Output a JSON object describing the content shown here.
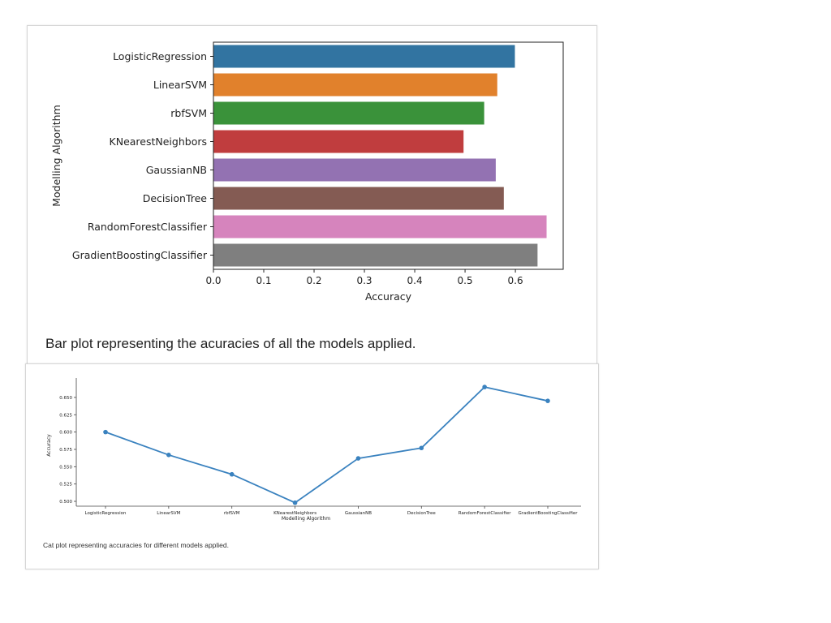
{
  "chart_data": [
    {
      "type": "bar",
      "orientation": "horizontal",
      "categories": [
        "LogisticRegression",
        "LinearSVM",
        "rbfSVM",
        "KNearestNeighbors",
        "GaussianNB",
        "DecisionTree",
        "RandomForestClassifier",
        "GradientBoostingClassifier"
      ],
      "values": [
        0.599,
        0.564,
        0.538,
        0.497,
        0.561,
        0.577,
        0.662,
        0.644
      ],
      "colors": [
        "#3274a1",
        "#e1812c",
        "#3a923a",
        "#c03d3e",
        "#9372b2",
        "#845b53",
        "#d684bd",
        "#7f7f7f"
      ],
      "xlabel": "Accuracy",
      "ylabel": "Modelling Algorithm",
      "xlim": [
        0,
        0.695
      ],
      "xticks": [
        "0.0",
        "0.1",
        "0.2",
        "0.3",
        "0.4",
        "0.5",
        "0.6"
      ],
      "caption": "Bar plot representing the acuracies of all the models applied."
    },
    {
      "type": "line",
      "categories": [
        "LogisticRegression",
        "LinearSVM",
        "rbfSVM",
        "KNearestNeighbors",
        "GaussianNB",
        "DecisionTree",
        "RandomForestClassifier",
        "GradientBoostingClassifier"
      ],
      "values": [
        0.6,
        0.567,
        0.539,
        0.498,
        0.562,
        0.577,
        0.665,
        0.645
      ],
      "color": "#3a82bf",
      "xlabel": "Modelling Algorithm",
      "ylabel": "Accuracy",
      "ylim": [
        0.493,
        0.678
      ],
      "yticks": [
        "0.500",
        "0.525",
        "0.550",
        "0.575",
        "0.600",
        "0.625",
        "0.650"
      ],
      "caption": "Cat plot representing accuracies for different models applied."
    }
  ]
}
